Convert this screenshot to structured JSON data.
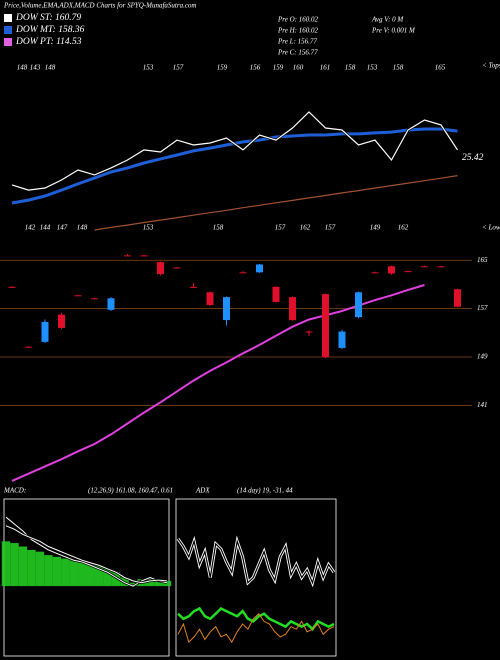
{
  "title": "Price,Volume,EMA,ADX,MACD Charts for SPYQ-MunafaSutra.com",
  "legend": [
    {
      "label": "DOW ST: 160.79",
      "color": "#ffffff"
    },
    {
      "label": "DOW MT: 158.36",
      "color": "#1e5fd8"
    },
    {
      "label": "DOW PT: 114.53",
      "color": "#e060e0"
    }
  ],
  "stats": [
    "Pre O: 160.02",
    "Pre H: 160.02",
    "Pre L: 156.77",
    "Pre C: 156.77",
    "Avg V: 0 M",
    "Pre V: 0.001 M"
  ],
  "chart_data": [
    {
      "type": "candlestick",
      "open": [
        160.6,
        150.7,
        151.5,
        156,
        159.2,
        158.7,
        156.8,
        165.8,
        165.8,
        164.7,
        163.8,
        160.6,
        159.7,
        155.1,
        163,
        163,
        160.6,
        158.9,
        153.2,
        159.4,
        150.5,
        155.6,
        163,
        164,
        163.2,
        164,
        164,
        160.2
      ],
      "high": [
        160.7,
        150.8,
        155.2,
        156.3,
        159.3,
        158.8,
        158.9,
        166,
        165.9,
        164.8,
        163.9,
        161.2,
        159.8,
        159,
        163.2,
        164.4,
        160.7,
        159,
        153.4,
        159.5,
        153.5,
        159.8,
        163.1,
        164.1,
        163.3,
        164.1,
        164.1,
        160.3
      ],
      "low": [
        160.5,
        150.6,
        151.3,
        153.6,
        159.1,
        158.6,
        156.6,
        165.7,
        165.7,
        162.5,
        163.7,
        160.4,
        157.4,
        154.2,
        162.9,
        162.9,
        158,
        155,
        152.5,
        148.8,
        150.3,
        155.4,
        162.9,
        162.6,
        163.1,
        163.9,
        163.9,
        157.2
      ],
      "close": [
        160.6,
        150.7,
        154.8,
        153.8,
        159.2,
        158.7,
        158.7,
        165.8,
        165.8,
        162.7,
        163.8,
        160.6,
        157.6,
        158.9,
        163,
        164.3,
        158.1,
        155.1,
        153.2,
        149,
        153.2,
        159.7,
        163,
        162.8,
        163.2,
        164,
        164,
        157.3
      ],
      "up_color": "#1e90ff",
      "down_color": "#e0102a",
      "series": [
        {
          "color": "#e040e0",
          "values": [
            128.5,
            129.7,
            130.9,
            132.1,
            133.4,
            134.6,
            136.2,
            138,
            139.8,
            141.5,
            143.3,
            145.1,
            146.7,
            148.1,
            149.6,
            151,
            152.5,
            154,
            155.2,
            155.9,
            156.6,
            157.5,
            158.4,
            159.2,
            160.1,
            160.9,
            null,
            null
          ]
        }
      ],
      "ylim": [
        127,
        170
      ],
      "yticks": [
        165,
        157,
        149,
        141
      ],
      "grid": true,
      "grid_color": "#8b4a16"
    },
    {
      "type": "line",
      "series": [
        {
          "color": "#a0522d",
          "values": [
            null,
            null,
            null,
            null,
            null,
            0,
            1.5,
            2.9,
            4.4,
            5.8,
            7.3,
            8.7,
            10.2,
            11.6,
            13.1,
            14.5,
            16,
            17.4,
            18.9,
            20.3,
            21.8,
            23.2,
            24.7,
            26.1,
            27.6,
            29,
            30.5,
            32
          ]
        },
        {
          "color": "#1e5fd8",
          "values": [
            15.9,
            17.6,
            20,
            23.5,
            27.1,
            30.6,
            34.1,
            36.5,
            39.4,
            41.8,
            44.1,
            46.5,
            48.2,
            50,
            51.8,
            52.9,
            54.7,
            55.3,
            55.9,
            55.9,
            56.5,
            56.5,
            57.1,
            57.6,
            58.8,
            59.4,
            59.4,
            58.2
          ]
        },
        {
          "color": "#ffffff",
          "values": [
            26.5,
            23.5,
            24.7,
            29.4,
            35.3,
            32.4,
            36.5,
            41.2,
            47.1,
            45.9,
            52.9,
            50,
            51.2,
            54.1,
            47.1,
            55.9,
            52.9,
            60,
            69.4,
            60,
            58.8,
            50,
            52.9,
            41.2,
            58.8,
            64.7,
            61.8,
            47.1
          ]
        }
      ],
      "ylim": [
        0,
        100
      ],
      "tops": [
        "148",
        "143",
        "148",
        "153",
        "157",
        "159",
        "156",
        "159",
        "160",
        "161",
        "158",
        "153",
        "158",
        "165"
      ],
      "lows": [
        "142",
        "144",
        "147",
        "148",
        "153",
        "158",
        "157",
        "162",
        "157",
        "149",
        "162"
      ],
      "tops_label": "< Tops",
      "lows_label": "< Lows",
      "annotation": "25.42"
    },
    {
      "type": "macd",
      "title": "MACD:",
      "label": "(12,26,9) 161.08, 160.47, 0.61",
      "histogram": {
        "color": "#22cc22",
        "values": [
          2.6,
          2.5,
          2.3,
          2.1,
          2,
          1.8,
          1.7,
          1.6,
          1.5,
          1.4,
          1.3,
          1.2,
          1,
          0.8,
          0.5,
          0.2,
          0.4,
          0.5,
          0.4,
          0.3
        ]
      },
      "series": [
        {
          "color": "#ffffff",
          "values": [
            4,
            3.6,
            3.2,
            2.7,
            2.4,
            2.1,
            1.9,
            1.7,
            1.5,
            1.4,
            1.2,
            1,
            0.8,
            0.5,
            0.2,
            0,
            0.3,
            0.5,
            0.3,
            0.2
          ]
        },
        {
          "color": "#ffffff",
          "values": [
            3.5,
            3.3,
            3,
            2.8,
            2.6,
            2.3,
            2.1,
            1.9,
            1.7,
            1.5,
            1.35,
            1.2,
            1,
            0.8,
            0.5,
            0.3,
            0.2,
            0.3,
            0.35,
            0.3
          ]
        }
      ],
      "ylim": [
        -4,
        5
      ]
    },
    {
      "type": "adx",
      "title": "ADX",
      "label": "(14 day) 19, -31, 44",
      "series": [
        {
          "color": "#ffffff",
          "values": [
            45,
            42,
            38,
            44,
            35,
            40,
            30,
            43,
            41,
            36,
            32,
            44,
            38,
            28,
            30,
            35,
            40,
            33,
            29,
            38,
            42,
            31,
            35,
            30,
            33,
            28,
            36,
            30,
            35,
            32
          ]
        },
        {
          "color": "#22dd22",
          "values": [
            16,
            14,
            15,
            17,
            18,
            15,
            14,
            16,
            18,
            17,
            16,
            15,
            17,
            14,
            13,
            15,
            16,
            14,
            13,
            12,
            11,
            13,
            12,
            11,
            12,
            10,
            13,
            12,
            11,
            12
          ]
        },
        {
          "color": "#e08020",
          "values": [
            8,
            12,
            5,
            7,
            10,
            6,
            9,
            11,
            7,
            8,
            5,
            9,
            12,
            10,
            14,
            16,
            13,
            12,
            9,
            7,
            8,
            11,
            10,
            13,
            9,
            10,
            12,
            8,
            10,
            11
          ]
        }
      ],
      "ylim": [
        0,
        60
      ]
    }
  ]
}
